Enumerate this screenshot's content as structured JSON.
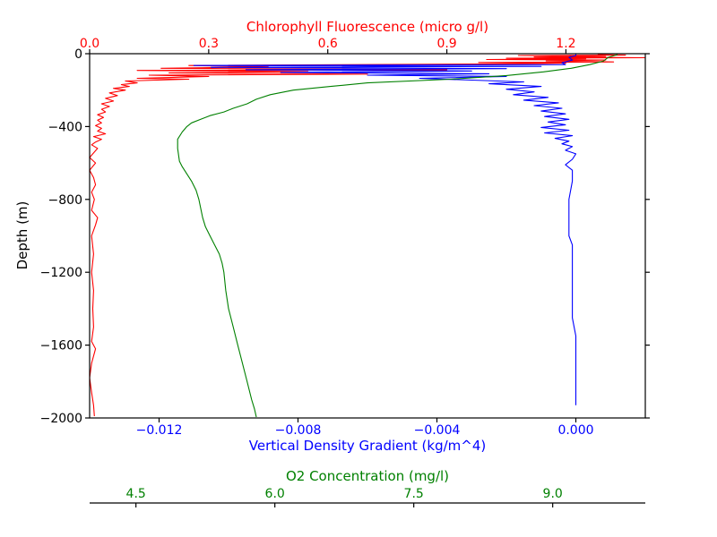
{
  "chart_data": {
    "type": "line",
    "title": "",
    "grid": false,
    "legend": "none",
    "y_axis": {
      "label": "Depth (m)",
      "range": [
        -2000,
        0
      ],
      "ticks": [
        0,
        -400,
        -800,
        -1200,
        -1600,
        -2000
      ],
      "tick_labels": [
        "0",
        "−400",
        "−800",
        "−1200",
        "−1600",
        "−2000"
      ]
    },
    "axes": [
      {
        "id": "chlorophyll",
        "position": "top",
        "label": "Chlorophyll Fluorescence (micro g/l)",
        "color": "#ff0000",
        "range": [
          0.0,
          1.4
        ],
        "ticks": [
          0.0,
          0.3,
          0.6,
          0.9,
          1.2
        ],
        "tick_labels": [
          "0.0",
          "0.3",
          "0.6",
          "0.9",
          "1.2"
        ]
      },
      {
        "id": "density",
        "position": "bottom",
        "label": "Vertical Density Gradient (kg/m^4)",
        "color": "#0000ff",
        "range": [
          -0.014,
          0.002
        ],
        "ticks": [
          -0.012,
          -0.008,
          -0.004,
          0.0
        ],
        "tick_labels": [
          "−0.012",
          "−0.008",
          "−0.004",
          "0.000"
        ]
      },
      {
        "id": "oxygen",
        "position": "bottom-offset",
        "label": "O2 Concentration (mg/l)",
        "color": "#008000",
        "range": [
          4.0,
          10.0
        ],
        "ticks": [
          4.5,
          6.0,
          7.5,
          9.0
        ],
        "tick_labels": [
          "4.5",
          "6.0",
          "7.5",
          "9.0"
        ]
      }
    ],
    "series": [
      {
        "axis": "chlorophyll",
        "color": "#ff0000",
        "points": [
          [
            1.28,
            -5
          ],
          [
            1.35,
            -8
          ],
          [
            1.08,
            -10
          ],
          [
            1.3,
            -15
          ],
          [
            1.12,
            -18
          ],
          [
            1.4,
            -22
          ],
          [
            1.05,
            -25
          ],
          [
            1.25,
            -28
          ],
          [
            1.0,
            -32
          ],
          [
            1.3,
            -35
          ],
          [
            1.15,
            -40
          ],
          [
            1.32,
            -45
          ],
          [
            0.98,
            -48
          ],
          [
            1.2,
            -52
          ],
          [
            1.1,
            -55
          ],
          [
            0.25,
            -65
          ],
          [
            0.45,
            -72
          ],
          [
            0.18,
            -80
          ],
          [
            0.9,
            -88
          ],
          [
            0.12,
            -92
          ],
          [
            0.55,
            -98
          ],
          [
            0.2,
            -105
          ],
          [
            0.7,
            -112
          ],
          [
            0.15,
            -118
          ],
          [
            0.3,
            -125
          ],
          [
            0.12,
            -135
          ],
          [
            0.25,
            -140
          ],
          [
            0.09,
            -150
          ],
          [
            0.12,
            -160
          ],
          [
            0.08,
            -170
          ],
          [
            0.1,
            -180
          ],
          [
            0.06,
            -190
          ],
          [
            0.09,
            -200
          ],
          [
            0.05,
            -215
          ],
          [
            0.07,
            -230
          ],
          [
            0.04,
            -245
          ],
          [
            0.06,
            -260
          ],
          [
            0.03,
            -275
          ],
          [
            0.05,
            -290
          ],
          [
            0.03,
            -305
          ],
          [
            0.04,
            -320
          ],
          [
            0.02,
            -335
          ],
          [
            0.035,
            -350
          ],
          [
            0.02,
            -365
          ],
          [
            0.03,
            -380
          ],
          [
            0.015,
            -395
          ],
          [
            0.03,
            -410
          ],
          [
            0.02,
            -425
          ],
          [
            0.04,
            -440
          ],
          [
            0.01,
            -455
          ],
          [
            0.03,
            -470
          ],
          [
            0.015,
            -485
          ],
          [
            0.005,
            -500
          ],
          [
            0.02,
            -520
          ],
          [
            0.01,
            -545
          ],
          [
            0.0,
            -570
          ],
          [
            0.015,
            -600
          ],
          [
            0.0,
            -640
          ],
          [
            0.01,
            -680
          ],
          [
            0.015,
            -720
          ],
          [
            0.005,
            -760
          ],
          [
            0.012,
            -800
          ],
          [
            0.005,
            -860
          ],
          [
            0.02,
            -900
          ],
          [
            0.015,
            -940
          ],
          [
            0.005,
            -1000
          ],
          [
            0.01,
            -1100
          ],
          [
            0.005,
            -1200
          ],
          [
            0.01,
            -1300
          ],
          [
            0.008,
            -1400
          ],
          [
            0.01,
            -1500
          ],
          [
            0.005,
            -1580
          ],
          [
            0.015,
            -1620
          ],
          [
            0.005,
            -1700
          ],
          [
            0.0,
            -1780
          ],
          [
            0.005,
            -1860
          ],
          [
            0.01,
            -1930
          ],
          [
            0.012,
            -1990
          ]
        ]
      },
      {
        "axis": "density",
        "color": "#0000ff",
        "points": [
          [
            0.0,
            0
          ],
          [
            0.0,
            -10
          ],
          [
            -0.0002,
            -20
          ],
          [
            -0.0001,
            -35
          ],
          [
            -0.0004,
            -50
          ],
          [
            -0.0003,
            -60
          ],
          [
            -0.011,
            -65
          ],
          [
            -0.001,
            -70
          ],
          [
            -0.0105,
            -75
          ],
          [
            -0.002,
            -82
          ],
          [
            -0.0095,
            -88
          ],
          [
            -0.003,
            -95
          ],
          [
            -0.0085,
            -102
          ],
          [
            -0.0025,
            -110
          ],
          [
            -0.006,
            -118
          ],
          [
            -0.002,
            -125
          ],
          [
            -0.0045,
            -135
          ],
          [
            -0.003,
            -145
          ],
          [
            -0.0015,
            -155
          ],
          [
            -0.0025,
            -165
          ],
          [
            -0.001,
            -180
          ],
          [
            -0.002,
            -195
          ],
          [
            -0.0012,
            -210
          ],
          [
            -0.0018,
            -225
          ],
          [
            -0.0008,
            -240
          ],
          [
            -0.0015,
            -255
          ],
          [
            -0.0005,
            -270
          ],
          [
            -0.0012,
            -285
          ],
          [
            -0.0004,
            -300
          ],
          [
            -0.001,
            -315
          ],
          [
            -0.0003,
            -330
          ],
          [
            -0.0009,
            -345
          ],
          [
            -0.0002,
            -360
          ],
          [
            -0.0008,
            -375
          ],
          [
            -0.0003,
            -390
          ],
          [
            -0.001,
            -405
          ],
          [
            -0.0002,
            -420
          ],
          [
            -0.0009,
            -435
          ],
          [
            -0.0001,
            -450
          ],
          [
            -0.0006,
            -465
          ],
          [
            -0.0002,
            -480
          ],
          [
            -0.0004,
            -495
          ],
          [
            -0.0001,
            -510
          ],
          [
            -0.0003,
            -530
          ],
          [
            0.0,
            -550
          ],
          [
            -0.0001,
            -580
          ],
          [
            -0.0003,
            -610
          ],
          [
            -0.0001,
            -640
          ],
          [
            -0.0001,
            -700
          ],
          [
            -0.0002,
            -800
          ],
          [
            -0.0002,
            -900
          ],
          [
            -0.0002,
            -1000
          ],
          [
            -0.0001,
            -1050
          ],
          [
            -0.0001,
            -1150
          ],
          [
            -0.0001,
            -1250
          ],
          [
            -0.0001,
            -1350
          ],
          [
            -0.0001,
            -1450
          ],
          [
            0.0,
            -1550
          ],
          [
            0.0,
            -1650
          ],
          [
            0.0,
            -1750
          ],
          [
            0.0,
            -1850
          ],
          [
            0.0,
            -1930
          ]
        ]
      },
      {
        "axis": "oxygen",
        "color": "#008000",
        "points": [
          [
            9.7,
            -5
          ],
          [
            9.6,
            -20
          ],
          [
            9.55,
            -40
          ],
          [
            9.4,
            -60
          ],
          [
            9.2,
            -80
          ],
          [
            8.9,
            -100
          ],
          [
            8.5,
            -120
          ],
          [
            7.9,
            -140
          ],
          [
            7.0,
            -160
          ],
          [
            6.6,
            -180
          ],
          [
            6.2,
            -200
          ],
          [
            5.95,
            -225
          ],
          [
            5.8,
            -250
          ],
          [
            5.7,
            -275
          ],
          [
            5.55,
            -300
          ],
          [
            5.45,
            -320
          ],
          [
            5.3,
            -340
          ],
          [
            5.2,
            -360
          ],
          [
            5.1,
            -380
          ],
          [
            5.05,
            -400
          ],
          [
            5.0,
            -430
          ],
          [
            4.95,
            -470
          ],
          [
            4.95,
            -520
          ],
          [
            4.97,
            -590
          ],
          [
            5.0,
            -620
          ],
          [
            5.05,
            -660
          ],
          [
            5.1,
            -700
          ],
          [
            5.15,
            -750
          ],
          [
            5.18,
            -800
          ],
          [
            5.2,
            -850
          ],
          [
            5.22,
            -900
          ],
          [
            5.25,
            -950
          ],
          [
            5.3,
            -1000
          ],
          [
            5.35,
            -1050
          ],
          [
            5.4,
            -1100
          ],
          [
            5.43,
            -1150
          ],
          [
            5.45,
            -1200
          ],
          [
            5.47,
            -1300
          ],
          [
            5.5,
            -1400
          ],
          [
            5.55,
            -1500
          ],
          [
            5.6,
            -1600
          ],
          [
            5.65,
            -1700
          ],
          [
            5.7,
            -1800
          ],
          [
            5.75,
            -1900
          ],
          [
            5.78,
            -1950
          ],
          [
            5.8,
            -1995
          ]
        ]
      }
    ]
  }
}
